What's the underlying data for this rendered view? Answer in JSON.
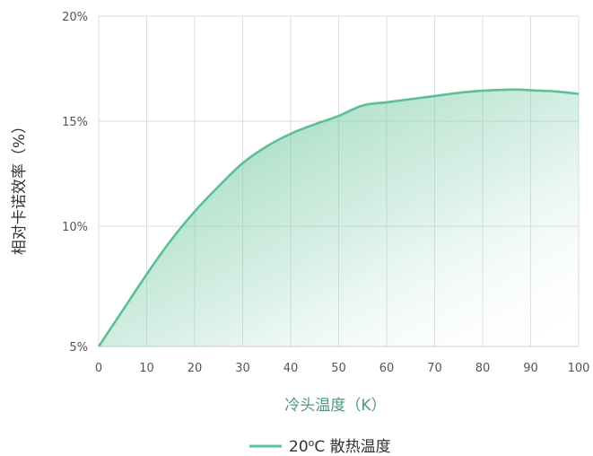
{
  "chart_data": {
    "type": "area",
    "xlabel": "冷头温度（K）",
    "ylabel": "相对卡诺效率（%）",
    "xlim": [
      0,
      100
    ],
    "ylim": [
      5,
      20
    ],
    "x_ticks": [
      "0",
      "10",
      "20",
      "30",
      "40",
      "50",
      "60",
      "70",
      "80",
      "90",
      "100"
    ],
    "y_ticks": [
      "5%",
      "10%",
      "15%",
      "20%"
    ],
    "y_tick_values": [
      5,
      10,
      15,
      20
    ],
    "grid": true,
    "legend_position": "bottom-center",
    "series": [
      {
        "name": "20°C 散热温度",
        "legend_parts": {
          "prefix": "20",
          "degree": "o",
          "suffix": "C 散热温度"
        },
        "color": "#5cc097",
        "x": [
          0,
          3,
          5,
          10,
          15,
          20,
          25,
          30,
          35,
          40,
          45,
          50,
          55,
          60,
          65,
          70,
          75,
          80,
          85,
          88,
          90,
          95,
          100
        ],
        "y": [
          5.0,
          5.9,
          6.5,
          8.0,
          9.4,
          10.7,
          11.9,
          13.0,
          13.8,
          14.4,
          14.85,
          15.25,
          15.75,
          15.9,
          16.05,
          16.2,
          16.35,
          16.45,
          16.5,
          16.5,
          16.47,
          16.42,
          16.3
        ]
      }
    ]
  }
}
